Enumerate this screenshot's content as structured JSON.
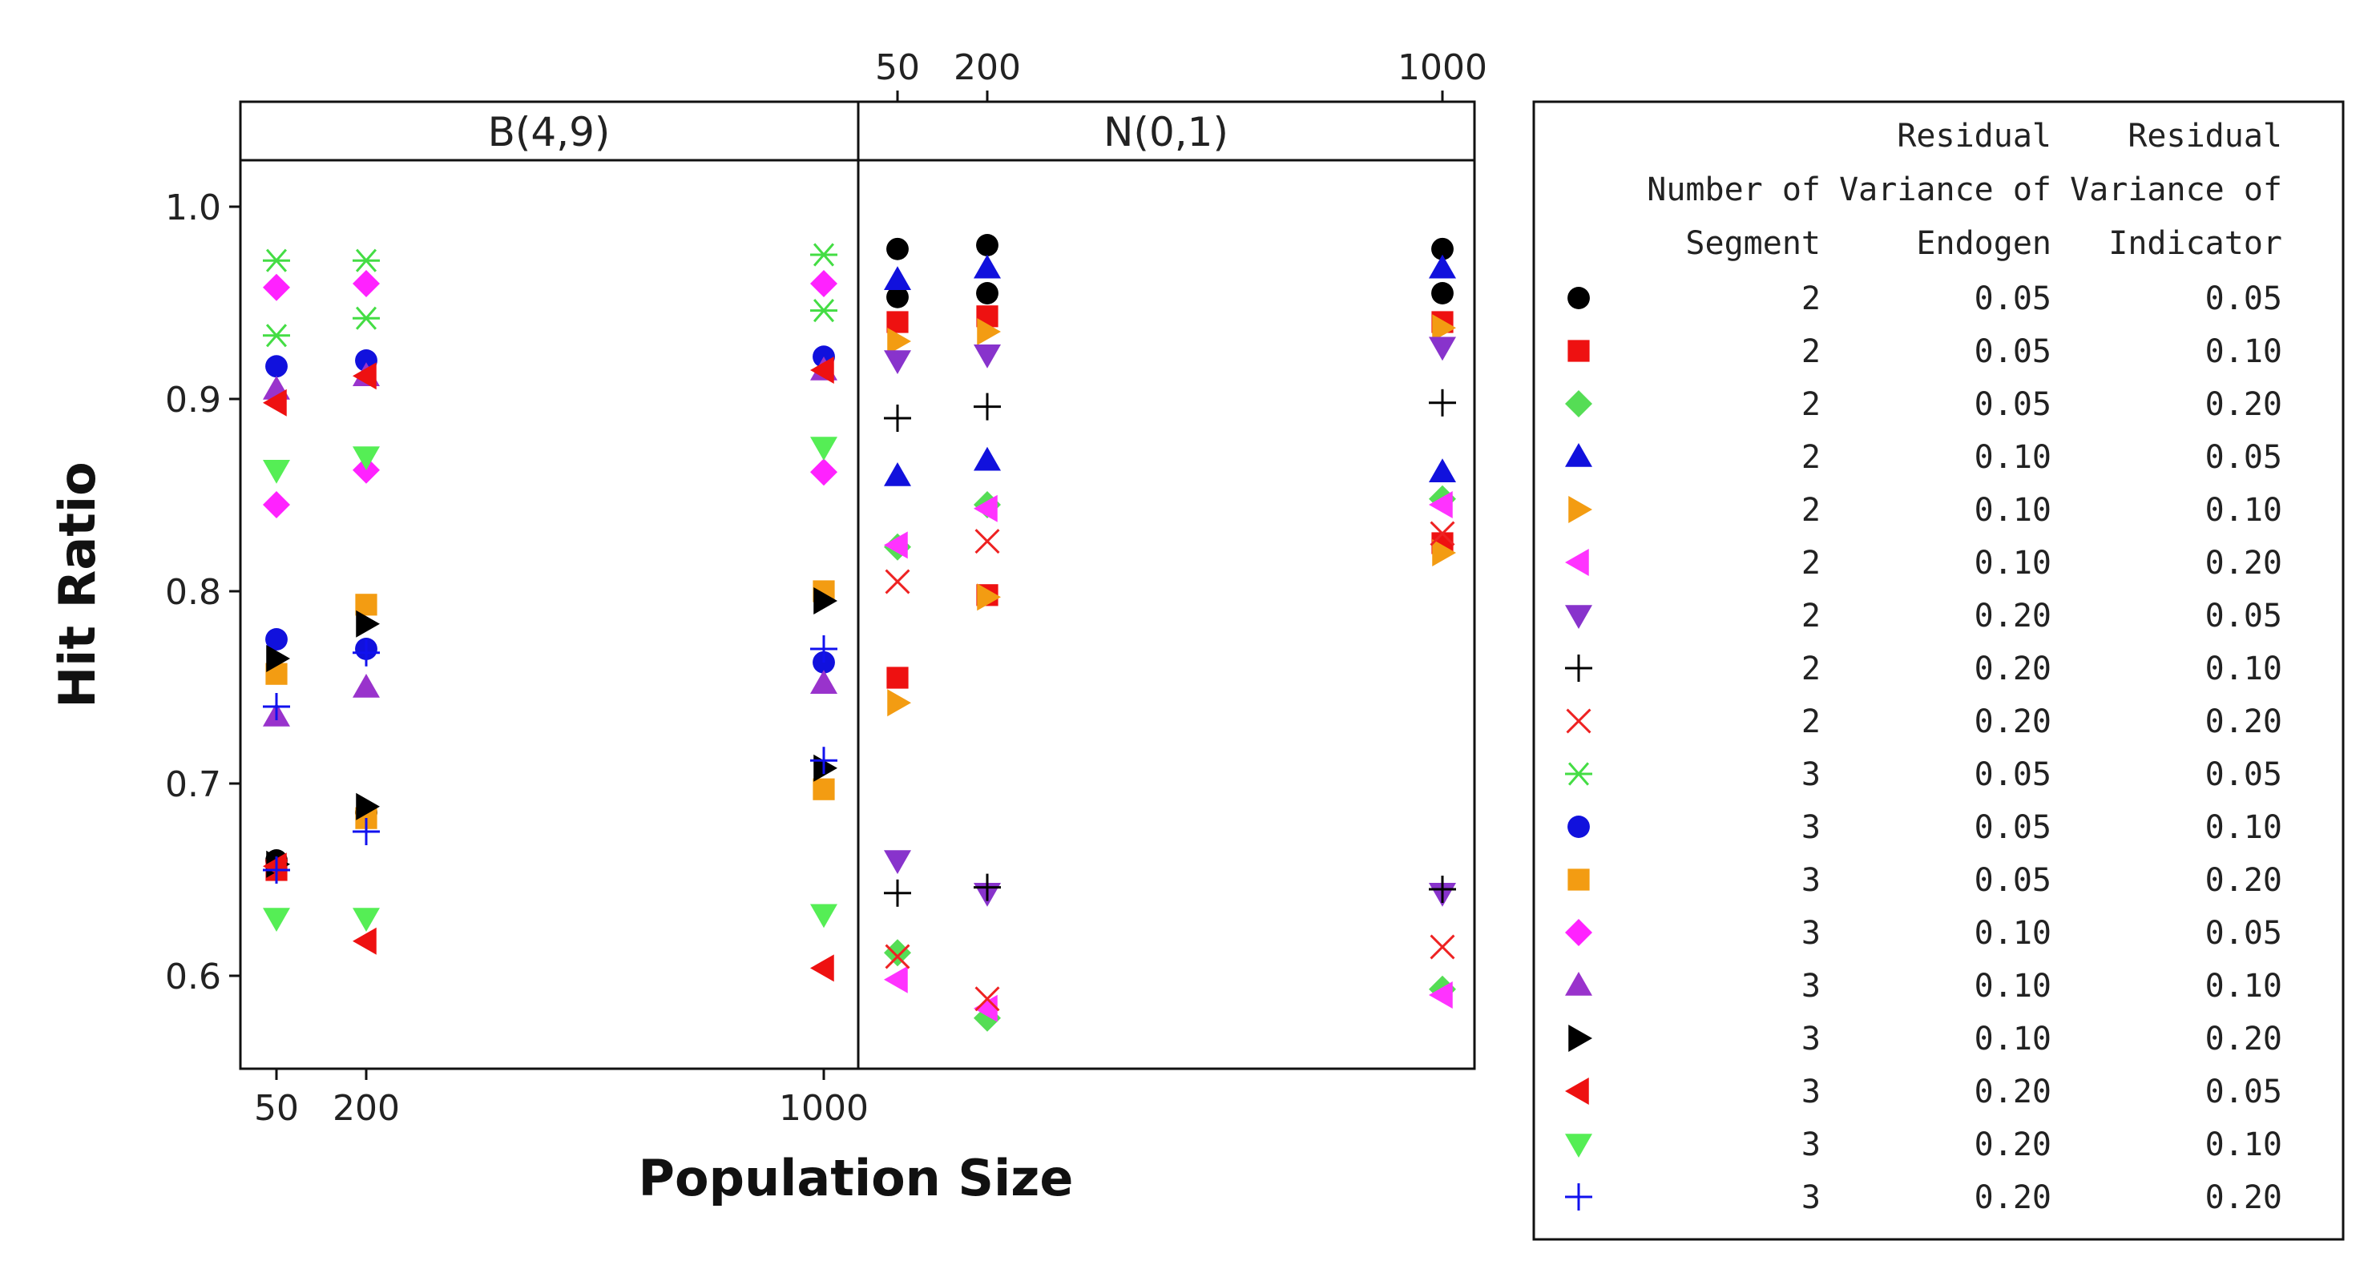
{
  "chart_data": {
    "type": "scatter",
    "xlabel": "Population Size",
    "ylabel": "Hit Ratio",
    "x_ticks": [
      "50",
      "200",
      "1000"
    ],
    "y_ticks": [
      "1.0",
      "0.9",
      "0.8",
      "0.7",
      "0.6"
    ],
    "ylim": [
      0.55,
      1.05
    ],
    "panels": [
      {
        "label": "B(4,9)",
        "x_positions": [
          "50",
          "200",
          "1000"
        ]
      },
      {
        "label": "N(0,1)",
        "x_positions": [
          "50",
          "200",
          "1000"
        ]
      }
    ],
    "legend": {
      "headers": [
        "Number of Segment",
        "Residual Variance of Endogen",
        "Residual Variance of Indicator"
      ],
      "entries": [
        {
          "segment": "2",
          "endogen": "0.05",
          "indicator": "0.05",
          "marker": "circle",
          "color": "#000000"
        },
        {
          "segment": "2",
          "endogen": "0.05",
          "indicator": "0.10",
          "marker": "square",
          "color": "#ee1111"
        },
        {
          "segment": "2",
          "endogen": "0.05",
          "indicator": "0.20",
          "marker": "diamond",
          "color": "#55dd55"
        },
        {
          "segment": "2",
          "endogen": "0.10",
          "indicator": "0.05",
          "marker": "triangle-up",
          "color": "#1111dd"
        },
        {
          "segment": "2",
          "endogen": "0.10",
          "indicator": "0.10",
          "marker": "triangle-right",
          "color": "#f39c12"
        },
        {
          "segment": "2",
          "endogen": "0.10",
          "indicator": "0.20",
          "marker": "triangle-left",
          "color": "#ff33ff"
        },
        {
          "segment": "2",
          "endogen": "0.20",
          "indicator": "0.05",
          "marker": "triangle-down",
          "color": "#8833cc"
        },
        {
          "segment": "2",
          "endogen": "0.20",
          "indicator": "0.10",
          "marker": "plus",
          "color": "#000000"
        },
        {
          "segment": "2",
          "endogen": "0.20",
          "indicator": "0.20",
          "marker": "cross",
          "color": "#ee2222"
        },
        {
          "segment": "3",
          "endogen": "0.05",
          "indicator": "0.05",
          "marker": "asterisk",
          "color": "#44dd44"
        },
        {
          "segment": "3",
          "endogen": "0.05",
          "indicator": "0.10",
          "marker": "circle",
          "color": "#1111dd"
        },
        {
          "segment": "3",
          "endogen": "0.05",
          "indicator": "0.20",
          "marker": "square",
          "color": "#f39c12"
        },
        {
          "segment": "3",
          "endogen": "0.10",
          "indicator": "0.05",
          "marker": "diamond",
          "color": "#ff22ff"
        },
        {
          "segment": "3",
          "endogen": "0.10",
          "indicator": "0.10",
          "marker": "triangle-up",
          "color": "#9933cc"
        },
        {
          "segment": "3",
          "endogen": "0.10",
          "indicator": "0.20",
          "marker": "triangle-right",
          "color": "#000000"
        },
        {
          "segment": "3",
          "endogen": "0.20",
          "indicator": "0.05",
          "marker": "triangle-left",
          "color": "#ee1111"
        },
        {
          "segment": "3",
          "endogen": "0.20",
          "indicator": "0.10",
          "marker": "triangle-down",
          "color": "#55ee55"
        },
        {
          "segment": "3",
          "endogen": "0.20",
          "indicator": "0.20",
          "marker": "plus",
          "color": "#1111ee"
        }
      ]
    },
    "series_values": [
      {
        "series": 0,
        "panel": 0,
        "x": "50",
        "y": 0.66
      },
      {
        "series": 0,
        "panel": 0,
        "x": "200",
        "y": 0.685
      },
      {
        "series": 0,
        "panel": 1,
        "x": "50",
        "y": 0.978
      },
      {
        "series": 0,
        "panel": 1,
        "x": "50",
        "y": 0.953
      },
      {
        "series": 0,
        "panel": 1,
        "x": "200",
        "y": 0.98
      },
      {
        "series": 0,
        "panel": 1,
        "x": "200",
        "y": 0.955
      },
      {
        "series": 0,
        "panel": 1,
        "x": "1000",
        "y": 0.978
      },
      {
        "series": 0,
        "panel": 1,
        "x": "1000",
        "y": 0.955
      },
      {
        "series": 1,
        "panel": 0,
        "x": "50",
        "y": 0.655
      },
      {
        "series": 1,
        "panel": 1,
        "x": "50",
        "y": 0.94
      },
      {
        "series": 1,
        "panel": 1,
        "x": "50",
        "y": 0.755
      },
      {
        "series": 1,
        "panel": 1,
        "x": "200",
        "y": 0.943
      },
      {
        "series": 1,
        "panel": 1,
        "x": "200",
        "y": 0.798
      },
      {
        "series": 1,
        "panel": 1,
        "x": "1000",
        "y": 0.94
      },
      {
        "series": 1,
        "panel": 1,
        "x": "1000",
        "y": 0.825
      },
      {
        "series": 2,
        "panel": 1,
        "x": "50",
        "y": 0.823
      },
      {
        "series": 2,
        "panel": 1,
        "x": "50",
        "y": 0.612
      },
      {
        "series": 2,
        "panel": 1,
        "x": "200",
        "y": 0.845
      },
      {
        "series": 2,
        "panel": 1,
        "x": "200",
        "y": 0.578
      },
      {
        "series": 2,
        "panel": 1,
        "x": "1000",
        "y": 0.848
      },
      {
        "series": 2,
        "panel": 1,
        "x": "1000",
        "y": 0.593
      },
      {
        "series": 3,
        "panel": 1,
        "x": "50",
        "y": 0.962
      },
      {
        "series": 3,
        "panel": 1,
        "x": "50",
        "y": 0.86
      },
      {
        "series": 3,
        "panel": 1,
        "x": "200",
        "y": 0.968
      },
      {
        "series": 3,
        "panel": 1,
        "x": "200",
        "y": 0.868
      },
      {
        "series": 3,
        "panel": 1,
        "x": "1000",
        "y": 0.968
      },
      {
        "series": 3,
        "panel": 1,
        "x": "1000",
        "y": 0.862
      },
      {
        "series": 4,
        "panel": 1,
        "x": "50",
        "y": 0.93
      },
      {
        "series": 4,
        "panel": 1,
        "x": "50",
        "y": 0.742
      },
      {
        "series": 4,
        "panel": 1,
        "x": "200",
        "y": 0.935
      },
      {
        "series": 4,
        "panel": 1,
        "x": "200",
        "y": 0.797
      },
      {
        "series": 4,
        "panel": 1,
        "x": "1000",
        "y": 0.937
      },
      {
        "series": 4,
        "panel": 1,
        "x": "1000",
        "y": 0.82
      },
      {
        "series": 5,
        "panel": 1,
        "x": "50",
        "y": 0.824
      },
      {
        "series": 5,
        "panel": 1,
        "x": "50",
        "y": 0.598
      },
      {
        "series": 5,
        "panel": 1,
        "x": "200",
        "y": 0.843
      },
      {
        "series": 5,
        "panel": 1,
        "x": "200",
        "y": 0.583
      },
      {
        "series": 5,
        "panel": 1,
        "x": "1000",
        "y": 0.845
      },
      {
        "series": 5,
        "panel": 1,
        "x": "1000",
        "y": 0.59
      },
      {
        "series": 6,
        "panel": 1,
        "x": "50",
        "y": 0.92
      },
      {
        "series": 6,
        "panel": 1,
        "x": "50",
        "y": 0.66
      },
      {
        "series": 6,
        "panel": 1,
        "x": "200",
        "y": 0.923
      },
      {
        "series": 6,
        "panel": 1,
        "x": "200",
        "y": 0.643
      },
      {
        "series": 6,
        "panel": 1,
        "x": "1000",
        "y": 0.927
      },
      {
        "series": 6,
        "panel": 1,
        "x": "1000",
        "y": 0.643
      },
      {
        "series": 7,
        "panel": 1,
        "x": "50",
        "y": 0.89
      },
      {
        "series": 7,
        "panel": 1,
        "x": "50",
        "y": 0.643
      },
      {
        "series": 7,
        "panel": 1,
        "x": "200",
        "y": 0.896
      },
      {
        "series": 7,
        "panel": 1,
        "x": "200",
        "y": 0.646
      },
      {
        "series": 7,
        "panel": 1,
        "x": "1000",
        "y": 0.898
      },
      {
        "series": 7,
        "panel": 1,
        "x": "1000",
        "y": 0.645
      },
      {
        "series": 8,
        "panel": 1,
        "x": "50",
        "y": 0.805
      },
      {
        "series": 8,
        "panel": 1,
        "x": "50",
        "y": 0.61
      },
      {
        "series": 8,
        "panel": 1,
        "x": "200",
        "y": 0.826
      },
      {
        "series": 8,
        "panel": 1,
        "x": "200",
        "y": 0.588
      },
      {
        "series": 8,
        "panel": 1,
        "x": "1000",
        "y": 0.83
      },
      {
        "series": 8,
        "panel": 1,
        "x": "1000",
        "y": 0.615
      },
      {
        "series": 9,
        "panel": 0,
        "x": "50",
        "y": 0.972
      },
      {
        "series": 9,
        "panel": 0,
        "x": "50",
        "y": 0.933
      },
      {
        "series": 9,
        "panel": 0,
        "x": "200",
        "y": 0.972
      },
      {
        "series": 9,
        "panel": 0,
        "x": "200",
        "y": 0.942
      },
      {
        "series": 9,
        "panel": 0,
        "x": "1000",
        "y": 0.975
      },
      {
        "series": 9,
        "panel": 0,
        "x": "1000",
        "y": 0.946
      },
      {
        "series": 10,
        "panel": 0,
        "x": "50",
        "y": 0.917
      },
      {
        "series": 10,
        "panel": 0,
        "x": "50",
        "y": 0.775
      },
      {
        "series": 10,
        "panel": 0,
        "x": "200",
        "y": 0.92
      },
      {
        "series": 10,
        "panel": 0,
        "x": "200",
        "y": 0.77
      },
      {
        "series": 10,
        "panel": 0,
        "x": "1000",
        "y": 0.922
      },
      {
        "series": 10,
        "panel": 0,
        "x": "1000",
        "y": 0.763
      },
      {
        "series": 11,
        "panel": 0,
        "x": "50",
        "y": 0.757
      },
      {
        "series": 11,
        "panel": 0,
        "x": "200",
        "y": 0.793
      },
      {
        "series": 11,
        "panel": 0,
        "x": "200",
        "y": 0.682
      },
      {
        "series": 11,
        "panel": 0,
        "x": "1000",
        "y": 0.8
      },
      {
        "series": 11,
        "panel": 0,
        "x": "1000",
        "y": 0.697
      },
      {
        "series": 12,
        "panel": 0,
        "x": "50",
        "y": 0.958
      },
      {
        "series": 12,
        "panel": 0,
        "x": "50",
        "y": 0.845
      },
      {
        "series": 12,
        "panel": 0,
        "x": "200",
        "y": 0.96
      },
      {
        "series": 12,
        "panel": 0,
        "x": "200",
        "y": 0.863
      },
      {
        "series": 12,
        "panel": 0,
        "x": "1000",
        "y": 0.96
      },
      {
        "series": 12,
        "panel": 0,
        "x": "1000",
        "y": 0.862
      },
      {
        "series": 13,
        "panel": 0,
        "x": "50",
        "y": 0.905
      },
      {
        "series": 13,
        "panel": 0,
        "x": "50",
        "y": 0.735
      },
      {
        "series": 13,
        "panel": 0,
        "x": "200",
        "y": 0.912
      },
      {
        "series": 13,
        "panel": 0,
        "x": "200",
        "y": 0.75
      },
      {
        "series": 13,
        "panel": 0,
        "x": "1000",
        "y": 0.915
      },
      {
        "series": 13,
        "panel": 0,
        "x": "1000",
        "y": 0.752
      },
      {
        "series": 14,
        "panel": 0,
        "x": "50",
        "y": 0.765
      },
      {
        "series": 14,
        "panel": 0,
        "x": "50",
        "y": 0.658
      },
      {
        "series": 14,
        "panel": 0,
        "x": "200",
        "y": 0.783
      },
      {
        "series": 14,
        "panel": 0,
        "x": "200",
        "y": 0.688
      },
      {
        "series": 14,
        "panel": 0,
        "x": "1000",
        "y": 0.795
      },
      {
        "series": 14,
        "panel": 0,
        "x": "1000",
        "y": 0.708
      },
      {
        "series": 15,
        "panel": 0,
        "x": "50",
        "y": 0.898
      },
      {
        "series": 15,
        "panel": 0,
        "x": "50",
        "y": 0.657
      },
      {
        "series": 15,
        "panel": 0,
        "x": "200",
        "y": 0.912
      },
      {
        "series": 15,
        "panel": 0,
        "x": "200",
        "y": 0.618
      },
      {
        "series": 15,
        "panel": 0,
        "x": "1000",
        "y": 0.915
      },
      {
        "series": 15,
        "panel": 0,
        "x": "1000",
        "y": 0.604
      },
      {
        "series": 16,
        "panel": 0,
        "x": "50",
        "y": 0.863
      },
      {
        "series": 16,
        "panel": 0,
        "x": "50",
        "y": 0.63
      },
      {
        "series": 16,
        "panel": 0,
        "x": "200",
        "y": 0.87
      },
      {
        "series": 16,
        "panel": 0,
        "x": "200",
        "y": 0.63
      },
      {
        "series": 16,
        "panel": 0,
        "x": "1000",
        "y": 0.875
      },
      {
        "series": 16,
        "panel": 0,
        "x": "1000",
        "y": 0.632
      },
      {
        "series": 17,
        "panel": 0,
        "x": "50",
        "y": 0.74
      },
      {
        "series": 17,
        "panel": 0,
        "x": "50",
        "y": 0.655
      },
      {
        "series": 17,
        "panel": 0,
        "x": "200",
        "y": 0.768
      },
      {
        "series": 17,
        "panel": 0,
        "x": "200",
        "y": 0.675
      },
      {
        "series": 17,
        "panel": 0,
        "x": "1000",
        "y": 0.77
      },
      {
        "series": 17,
        "panel": 0,
        "x": "1000",
        "y": 0.712
      }
    ]
  }
}
